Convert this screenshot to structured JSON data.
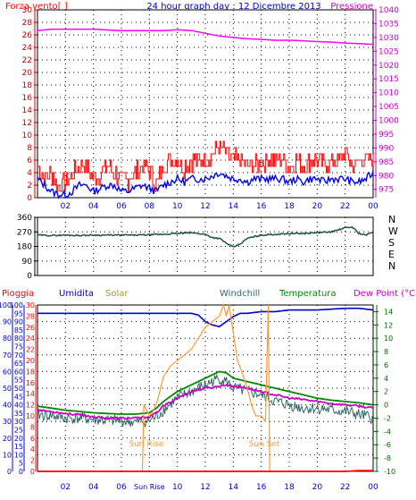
{
  "header": {
    "title": "24 hour graph day : 12 Dicembre 2013",
    "left_label": "Forza vento[ ]",
    "right_label": "Pressione"
  },
  "colors": {
    "wind": "#ff0000",
    "wind_avg": "#0000ff",
    "pressure": "#ff00ff",
    "direction": "#1f4f4f",
    "rain": "#ff0000",
    "humidity": "#0000cc",
    "solar": "#ff9933",
    "windchill": "#336666",
    "temperature": "#008800",
    "dewpoint": "#cc00cc",
    "grid": "#000000",
    "plot_bg": "#ffffff"
  },
  "time_ticks": [
    "02",
    "04",
    "06",
    "08",
    "10",
    "12",
    "14",
    "16",
    "18",
    "20",
    "22",
    "00"
  ],
  "bottom_time_ticks": [
    "02",
    "04",
    "06",
    "Sun Rise",
    "10",
    "12",
    "14",
    "16",
    "18",
    "20",
    "22",
    "00"
  ],
  "chart_data": [
    {
      "id": "wind_pressure",
      "type": "line",
      "left_axis": {
        "label": "Forza vento[ ]",
        "ticks": [
          0,
          2,
          4,
          6,
          8,
          10,
          12,
          14,
          16,
          18,
          20,
          22,
          24,
          26,
          28,
          30
        ],
        "ylim": [
          0,
          30
        ]
      },
      "right_axis": {
        "label": "Pressione",
        "ticks": [
          975,
          980,
          985,
          990,
          995,
          1000,
          1005,
          1010,
          1015,
          1020,
          1025,
          1030,
          1035,
          1040
        ],
        "ylim": [
          972,
          1040
        ]
      },
      "series": [
        {
          "id": "gust",
          "x": [
            0,
            0.5,
            1,
            1.5,
            2,
            2.5,
            3,
            3.5,
            4,
            4.5,
            5,
            5.5,
            6,
            6.5,
            7,
            7.5,
            8,
            8.5,
            9,
            9.5,
            10,
            10.5,
            11,
            11.5,
            12,
            12.5,
            13,
            13.5,
            14,
            14.5,
            15,
            15.5,
            16,
            16.5,
            17,
            17.5,
            18,
            18.5,
            19,
            19.5,
            20,
            20.5,
            21,
            21.5,
            22,
            22.5,
            23,
            23.5,
            24
          ],
          "values": [
            5,
            3,
            4,
            2,
            2,
            4,
            5,
            5,
            3,
            4,
            5,
            4,
            3,
            3,
            4,
            5,
            4,
            2,
            5,
            6,
            6,
            5,
            6,
            6,
            6,
            7,
            8,
            7,
            6,
            6,
            5,
            5,
            6,
            6,
            6,
            6,
            5,
            6,
            5,
            6,
            6,
            5,
            6,
            6,
            7,
            5,
            6,
            6,
            6
          ]
        },
        {
          "id": "average",
          "x": [
            0,
            0.5,
            1,
            1.5,
            2,
            2.5,
            3,
            3.5,
            4,
            4.5,
            5,
            5.5,
            6,
            6.5,
            7,
            7.5,
            8,
            8.5,
            9,
            9.5,
            10,
            10.5,
            11,
            11.5,
            12,
            12.5,
            13,
            13.5,
            14,
            14.5,
            15,
            15.5,
            16,
            16.5,
            17,
            17.5,
            18,
            18.5,
            19,
            19.5,
            20,
            20.5,
            21,
            21.5,
            22,
            22.5,
            23,
            23.5,
            24
          ],
          "values": [
            3,
            2,
            1,
            0.5,
            0.5,
            1,
            2,
            2,
            1,
            1.5,
            2,
            2,
            1,
            1,
            1.5,
            2,
            1.5,
            1,
            2,
            2.5,
            3,
            2.5,
            3,
            3,
            3,
            3.5,
            4,
            3.5,
            3,
            3,
            2.5,
            3,
            3,
            3,
            3,
            3,
            2.5,
            3,
            2.5,
            3,
            3,
            2.5,
            3,
            3,
            3,
            2.5,
            2.5,
            3,
            4
          ]
        },
        {
          "id": "pressure",
          "axis": "right",
          "x": [
            0,
            1,
            2,
            3,
            4,
            5,
            6,
            7,
            8,
            9,
            10,
            11,
            12,
            13,
            14,
            15,
            16,
            17,
            18,
            19,
            20,
            21,
            22,
            23,
            24
          ],
          "values": [
            1032.5,
            1033,
            1033,
            1033,
            1033,
            1032.7,
            1032.5,
            1032.5,
            1032.5,
            1032.5,
            1032.8,
            1032.5,
            1031.5,
            1030.5,
            1030,
            1029.5,
            1029.3,
            1029,
            1029,
            1028.8,
            1028.5,
            1028.3,
            1028,
            1027.8,
            1027.5
          ]
        }
      ]
    },
    {
      "id": "wind_direction",
      "type": "line",
      "left_axis": {
        "ticks": [
          0,
          90,
          180,
          270,
          360
        ],
        "ylim": [
          0,
          360
        ]
      },
      "compass": [
        "N",
        "W",
        "S",
        "E",
        "N"
      ],
      "series": [
        {
          "id": "direction",
          "x": [
            0,
            1,
            2,
            3,
            4,
            5,
            6,
            7,
            8,
            9,
            10,
            11,
            12,
            12.5,
            13,
            13.5,
            14,
            14.5,
            15,
            16,
            17,
            18,
            19,
            20,
            21,
            22,
            22.5,
            23,
            23.5,
            24
          ],
          "values": [
            250,
            248,
            250,
            248,
            250,
            250,
            250,
            250,
            252,
            255,
            260,
            265,
            255,
            235,
            230,
            200,
            175,
            195,
            230,
            250,
            255,
            260,
            260,
            265,
            270,
            295,
            300,
            260,
            250,
            270
          ]
        }
      ]
    },
    {
      "id": "temp_humidity",
      "type": "line",
      "axes_labels": {
        "rain": "Pioggia",
        "humidity": "Umidita",
        "solar": "Solar",
        "windchill": "Windchill",
        "temperature": "Temperatura",
        "dewpoint": "Dew Point (°C)"
      },
      "rain_axis": {
        "ticks": [
          0,
          10,
          20,
          30,
          40,
          50,
          60,
          70,
          80,
          90,
          100
        ],
        "ylim": [
          0,
          100
        ]
      },
      "humidity_axis": {
        "ticks": [
          0,
          5,
          10,
          15,
          20,
          25,
          30,
          35,
          40,
          45,
          50,
          55,
          60,
          65,
          70,
          75,
          80,
          85,
          90,
          95,
          100
        ],
        "ylim": [
          0,
          100
        ]
      },
      "solar_axis": {
        "ticks": [
          0,
          2,
          4,
          6,
          8,
          10,
          12,
          14,
          16,
          18,
          20,
          22,
          24,
          26,
          28,
          30
        ],
        "ylim": [
          0,
          30
        ]
      },
      "temp_axis": {
        "ticks": [
          -10,
          -8,
          -6,
          -4,
          -2,
          0,
          2,
          4,
          6,
          8,
          10,
          12,
          14
        ],
        "ylim": [
          -10,
          15
        ]
      },
      "annotations": [
        "Sun Rise",
        "Sun Set"
      ],
      "series": [
        {
          "id": "humidity",
          "axis": "humidity",
          "x": [
            0,
            2,
            4,
            6,
            7.5,
            8,
            9,
            10,
            11,
            11.5,
            12,
            12.5,
            13,
            13.5,
            14,
            14.5,
            15,
            16,
            17,
            18,
            20,
            22,
            23,
            24
          ],
          "values": [
            95,
            95,
            95,
            95,
            95,
            95,
            95,
            95,
            95,
            94,
            90,
            88,
            87,
            90,
            93,
            95,
            95,
            96,
            96,
            97,
            97,
            98,
            98,
            97
          ]
        },
        {
          "id": "solar",
          "axis": "solar",
          "x": [
            7.5,
            7.6,
            8,
            8.3,
            8.6,
            9,
            9.5,
            10,
            10.5,
            11,
            11.5,
            12,
            12.5,
            13,
            13.3,
            13.5,
            13.7,
            14,
            14.3,
            14.6,
            15,
            15.3,
            15.6,
            16,
            16.3,
            16.5,
            16.6
          ],
          "values": [
            0,
            12,
            10,
            11,
            13,
            17,
            19,
            20,
            21,
            22,
            24,
            26,
            27,
            28,
            30,
            28,
            30,
            25,
            20,
            18,
            15,
            12,
            10,
            10,
            9,
            30,
            0
          ]
        },
        {
          "id": "temperature",
          "axis": "temp",
          "x": [
            0,
            1,
            2,
            3,
            4,
            5,
            6,
            7,
            8,
            8.5,
            9,
            10,
            11,
            12,
            12.5,
            13,
            13.5,
            14,
            15,
            16,
            17,
            18,
            19,
            20,
            21,
            22,
            23,
            24
          ],
          "values": [
            -0.2,
            -0.5,
            -0.8,
            -1,
            -1.2,
            -1.3,
            -1.4,
            -1.4,
            -1.2,
            -0.5,
            0.5,
            2,
            3,
            4,
            4.5,
            5,
            4.8,
            4,
            3.5,
            3,
            2.5,
            2,
            1.5,
            1,
            0.7,
            0.5,
            0.3,
            0
          ]
        },
        {
          "id": "dewpoint",
          "axis": "temp",
          "x": [
            0,
            1,
            2,
            3,
            4,
            5,
            6,
            7,
            8,
            8.5,
            9,
            10,
            11,
            12,
            12.5,
            13,
            13.5,
            14,
            15,
            16,
            17,
            18,
            19,
            20,
            21,
            22,
            23,
            24
          ],
          "values": [
            -0.8,
            -1,
            -1.3,
            -1.5,
            -1.8,
            -2,
            -2,
            -2,
            -1.8,
            -1.2,
            -0.2,
            1,
            2,
            2.5,
            2.6,
            2.8,
            3,
            2.8,
            2.5,
            2,
            1.5,
            1,
            0.8,
            0.5,
            0.2,
            0,
            -0.2,
            -0.5
          ]
        },
        {
          "id": "windchill",
          "axis": "temp",
          "x": [
            0,
            1,
            2,
            3,
            4,
            5,
            6,
            7,
            8,
            8.5,
            9,
            10,
            11,
            12,
            12.5,
            13,
            13.5,
            14,
            15,
            16,
            17,
            18,
            19,
            20,
            21,
            22,
            23,
            24
          ],
          "values": [
            -1.5,
            -1.6,
            -2,
            -2,
            -2.2,
            -2.4,
            -2.4,
            -2.6,
            -2.4,
            -1.8,
            -0.8,
            1,
            2,
            3,
            3.5,
            4,
            3.5,
            2.5,
            2,
            1.5,
            0.5,
            0,
            -0.5,
            -0.5,
            -0.8,
            -1,
            -1.5,
            -2
          ]
        },
        {
          "id": "rain",
          "axis": "rain",
          "x": [
            0,
            22,
            23,
            24
          ],
          "values": [
            0,
            0,
            0.5,
            0.5
          ]
        }
      ]
    }
  ]
}
